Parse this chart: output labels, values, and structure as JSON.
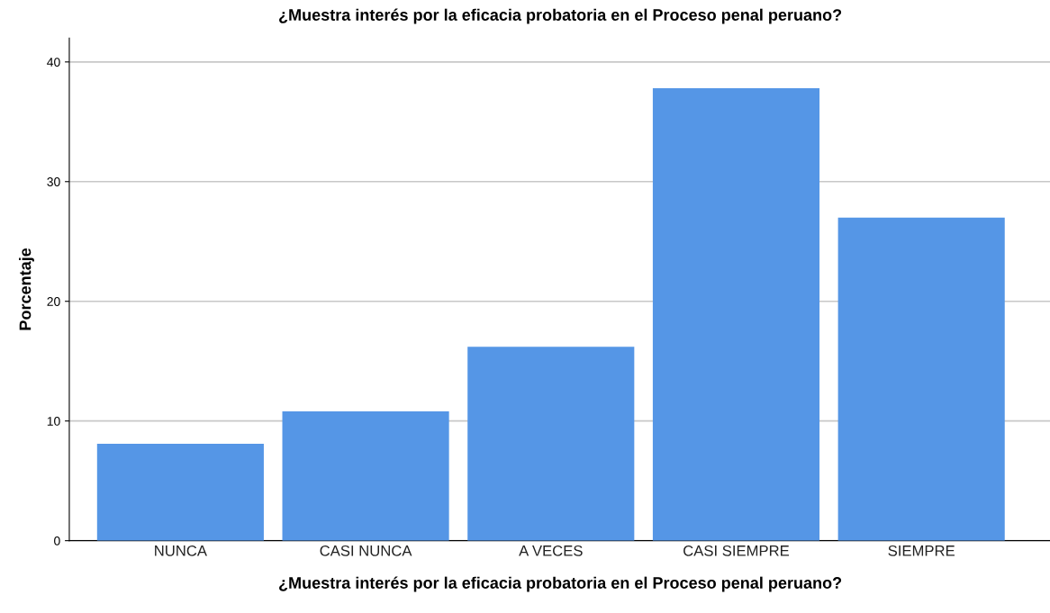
{
  "chart_data": {
    "type": "bar",
    "title": "¿Muestra interés por la eficacia probatoria en el Proceso penal peruano?",
    "xlabel": "¿Muestra interés por la eficacia probatoria en el Proceso penal peruano?",
    "ylabel": "Porcentaje",
    "categories": [
      "NUNCA",
      "CASI NUNCA",
      "A VECES",
      "CASI SIEMPRE",
      "SIEMPRE"
    ],
    "values": [
      8.1,
      10.8,
      16.2,
      37.8,
      27.0
    ],
    "color": "#5596e6",
    "ylim": [
      0,
      42
    ],
    "yticks": [
      0,
      10,
      20,
      30,
      40
    ],
    "grid": "y"
  }
}
